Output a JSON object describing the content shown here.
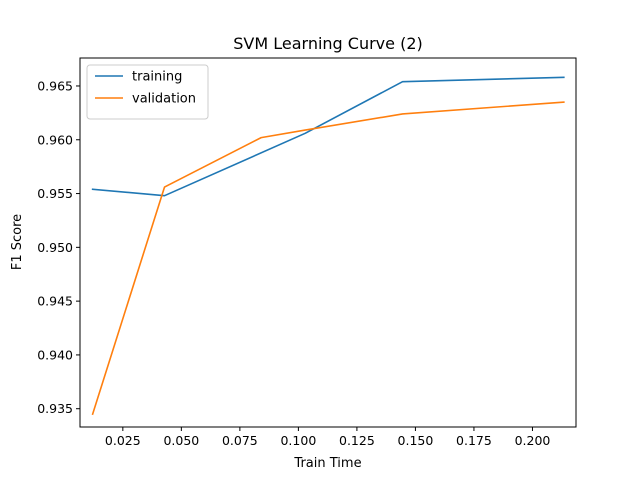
{
  "chart_data": {
    "type": "line",
    "title": "SVM Learning Curve (2)",
    "xlabel": "Train Time",
    "ylabel": "F1 Score",
    "xlim": [
      0.0067,
      0.2186
    ],
    "ylim": [
      0.9333,
      0.9676
    ],
    "xticks": [
      0.025,
      0.05,
      0.075,
      0.1,
      0.125,
      0.15,
      0.175,
      0.2
    ],
    "xtick_labels": [
      "0.025",
      "0.050",
      "0.075",
      "0.100",
      "0.125",
      "0.150",
      "0.175",
      "0.200"
    ],
    "yticks": [
      0.935,
      0.94,
      0.945,
      0.95,
      0.955,
      0.96,
      0.965
    ],
    "ytick_labels": [
      "0.935",
      "0.940",
      "0.945",
      "0.950",
      "0.955",
      "0.960",
      "0.965"
    ],
    "grid": false,
    "legend_position": "top-left",
    "series": [
      {
        "name": "training",
        "color": "#1f77b4",
        "x": [
          0.0121,
          0.0428,
          0.1029,
          0.1445,
          0.2134
        ],
        "y": [
          0.9554,
          0.9548,
          0.9606,
          0.9654,
          0.9658
        ]
      },
      {
        "name": "validation",
        "color": "#ff7f0e",
        "x": [
          0.0121,
          0.0428,
          0.0841,
          0.1029,
          0.1445,
          0.2134
        ],
        "y": [
          0.9345,
          0.9556,
          0.9602,
          0.9609,
          0.9624,
          0.9635
        ]
      }
    ]
  }
}
